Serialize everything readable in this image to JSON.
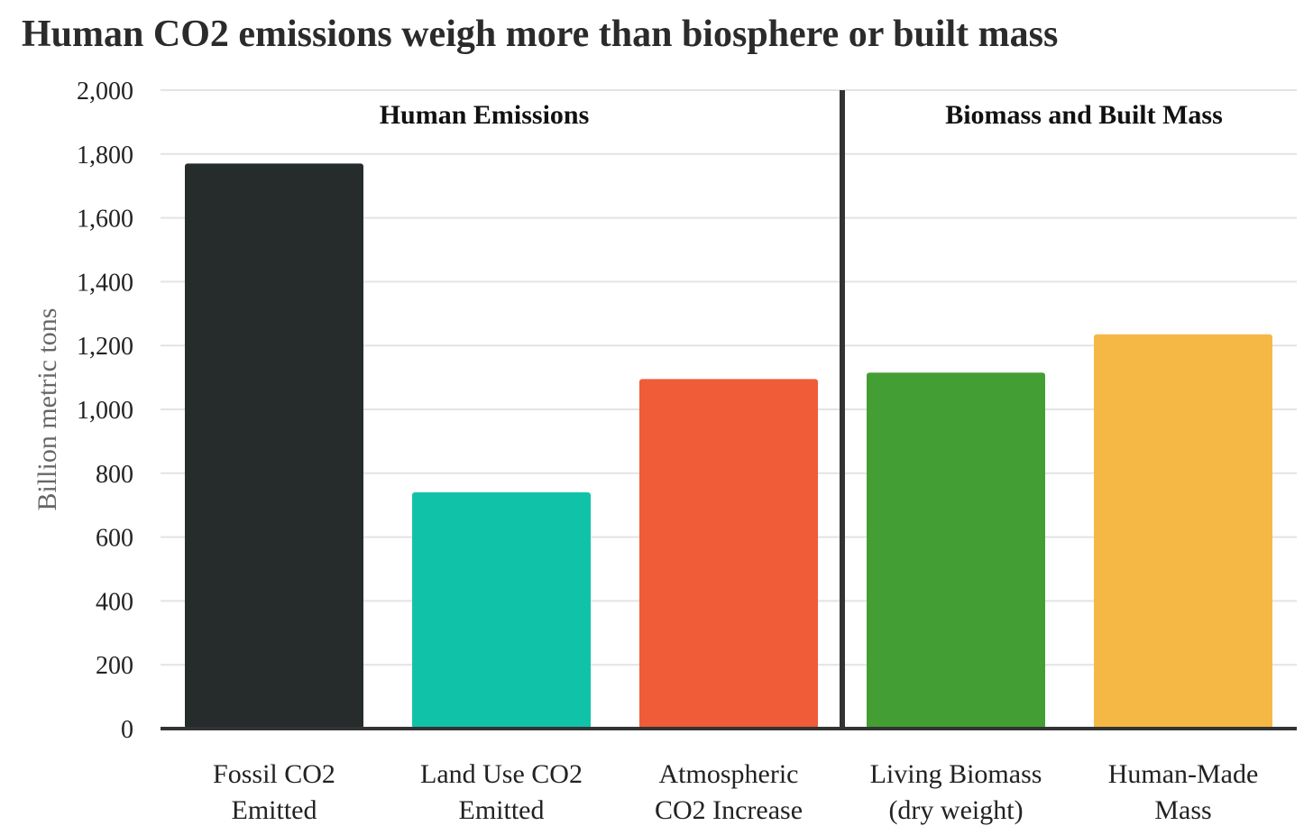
{
  "chart_data": {
    "type": "bar",
    "title": "Human CO2 emissions weigh more than biosphere or built mass",
    "ylabel": "Billion metric tons",
    "xlabel": "",
    "ylim": [
      0,
      2000
    ],
    "yticks": [
      0,
      200,
      400,
      600,
      800,
      1000,
      1200,
      1400,
      1600,
      1800,
      2000
    ],
    "ytick_labels": [
      "0",
      "200",
      "400",
      "600",
      "800",
      "1,000",
      "1,200",
      "1,400",
      "1,600",
      "1,800",
      "2,000"
    ],
    "grid": true,
    "categories": [
      [
        "Fossil CO2",
        "Emitted"
      ],
      [
        "Land Use CO2",
        "Emitted"
      ],
      [
        "Atmospheric",
        "CO2 Increase"
      ],
      [
        "Living Biomass",
        "(dry weight)"
      ],
      [
        "Human-Made",
        "Mass"
      ]
    ],
    "values": [
      1770,
      740,
      1095,
      1115,
      1235
    ],
    "colors": [
      "#262b2b",
      "#10c3a8",
      "#ef5c37",
      "#439f33",
      "#f6b845"
    ],
    "groups": [
      {
        "label": "Human Emissions",
        "categories": [
          0,
          1,
          2
        ]
      },
      {
        "label": "Biomass and Built Mass",
        "categories": [
          3,
          4
        ]
      }
    ]
  }
}
